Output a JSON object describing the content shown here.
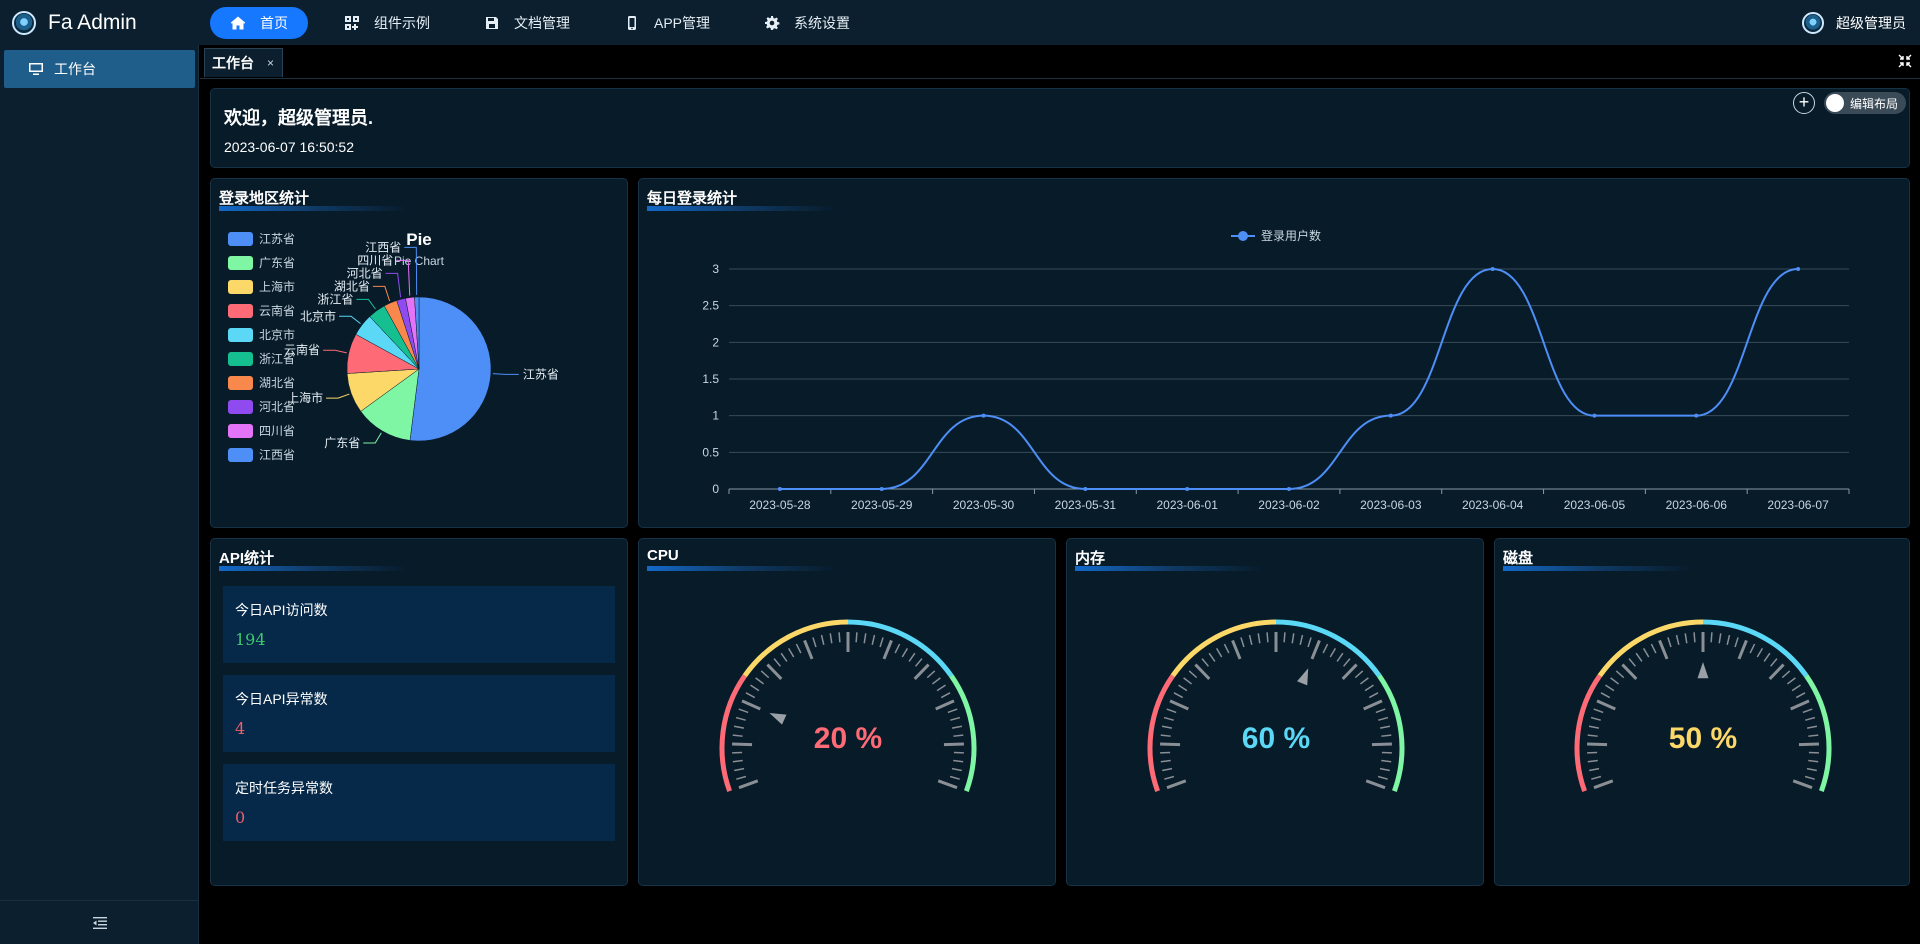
{
  "app": {
    "title": "Fa Admin"
  },
  "nav": {
    "items": [
      {
        "label": "首页",
        "icon": "home-icon",
        "active": true
      },
      {
        "label": "组件示例",
        "icon": "components-icon",
        "active": false
      },
      {
        "label": "文档管理",
        "icon": "save-icon",
        "active": false
      },
      {
        "label": "APP管理",
        "icon": "mobile-icon",
        "active": false
      },
      {
        "label": "系统设置",
        "icon": "gear-icon",
        "active": false
      }
    ]
  },
  "user": {
    "name": "超级管理员"
  },
  "sidebar": {
    "items": [
      {
        "label": "工作台",
        "icon": "desktop-icon"
      }
    ]
  },
  "tabs": [
    {
      "label": "工作台",
      "close": "×"
    }
  ],
  "welcome": {
    "title": "欢迎，超级管理员.",
    "time": "2023-06-07 16:50:52",
    "add": "+",
    "toggle_label": "编辑布局"
  },
  "region_card": {
    "title": "登录地区统计",
    "chart_data": {
      "type": "pie",
      "title": "Pie",
      "subtitle": "Pie Chart",
      "legend_position": "left",
      "slices": [
        {
          "name": "江苏省",
          "value": 52,
          "color": "#4e8ef7"
        },
        {
          "name": "广东省",
          "value": 13,
          "color": "#7ef6a4"
        },
        {
          "name": "上海市",
          "value": 9,
          "color": "#fcd868"
        },
        {
          "name": "云南省",
          "value": 9,
          "color": "#fe6b76"
        },
        {
          "name": "北京市",
          "value": 5,
          "color": "#5ad8f5"
        },
        {
          "name": "浙江省",
          "value": 4,
          "color": "#15bf90"
        },
        {
          "name": "湖北省",
          "value": 3,
          "color": "#f8884b"
        },
        {
          "name": "河北省",
          "value": 2,
          "color": "#8f4bef"
        },
        {
          "name": "四川省",
          "value": 2,
          "color": "#e373f7"
        },
        {
          "name": "江西省",
          "value": 1,
          "color": "#4e8ef7"
        }
      ]
    }
  },
  "daily_card": {
    "title": "每日登录统计",
    "chart_data": {
      "type": "line",
      "legend": "登录用户数",
      "color": "#4e8ef7",
      "categories": [
        "2023-05-28",
        "2023-05-29",
        "2023-05-30",
        "2023-05-31",
        "2023-06-01",
        "2023-06-02",
        "2023-06-03",
        "2023-06-04",
        "2023-06-05",
        "2023-06-06",
        "2023-06-07"
      ],
      "values": [
        0,
        0,
        1,
        0,
        0,
        0,
        1,
        3,
        1,
        1,
        3
      ],
      "ylim": [
        0,
        3
      ],
      "yticks": [
        "0",
        "0.5",
        "1",
        "1.5",
        "2",
        "2.5",
        "3"
      ],
      "grid": true
    }
  },
  "api_card": {
    "title": "API统计",
    "items": [
      {
        "label": "今日API访问数",
        "value": "194",
        "color": "#3ec96a"
      },
      {
        "label": "今日API异常数",
        "value": "4",
        "color": "#ef5d68"
      },
      {
        "label": "定时任务异常数",
        "value": "0",
        "color": "#ef5d68"
      }
    ]
  },
  "gauges": [
    {
      "title": "CPU",
      "value": 20,
      "unit": " %",
      "text": "20 %",
      "color": "#fe6b76"
    },
    {
      "title": "内存",
      "value": 60,
      "unit": " %",
      "text": "60 %",
      "color": "#5ad8f5"
    },
    {
      "title": "磁盘",
      "value": 50,
      "unit": " %",
      "text": "50 %",
      "color": "#fcd868"
    }
  ]
}
